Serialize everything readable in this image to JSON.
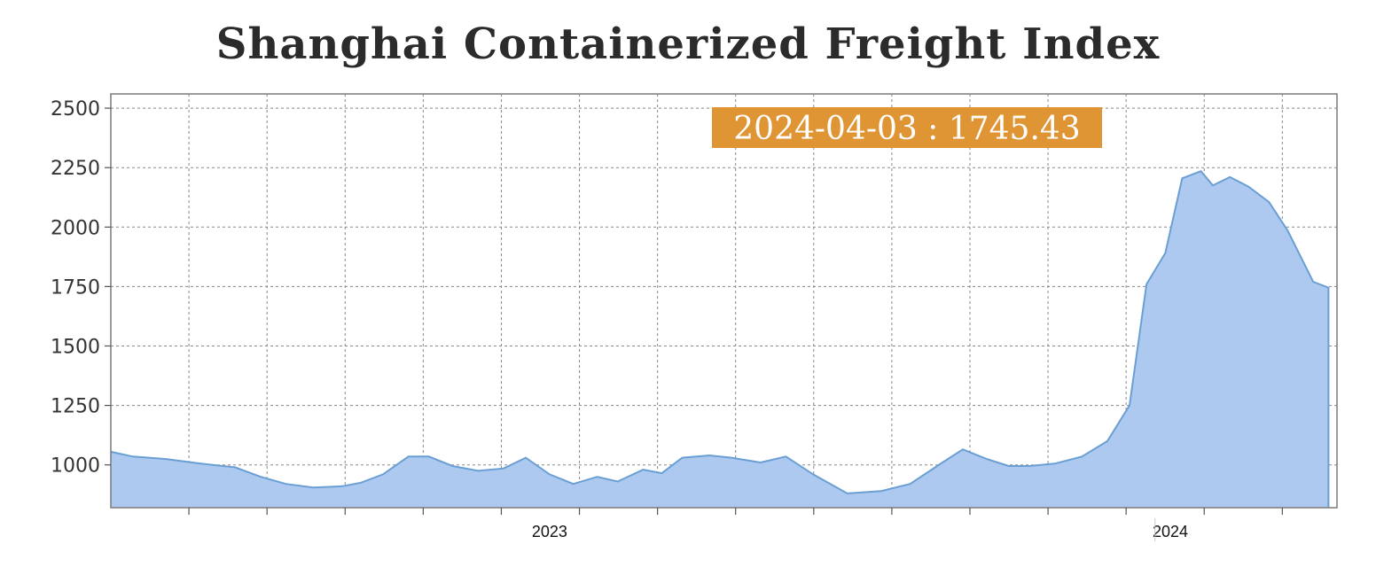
{
  "chart_data": {
    "type": "area",
    "title": "Shanghai Containerized Freight Index",
    "xlabel": "",
    "ylabel": "",
    "x_range": [
      "2022-04-18",
      "2024-04-08"
    ],
    "ylim": [
      820,
      2560
    ],
    "yticks": [
      1000,
      1250,
      1500,
      1750,
      2000,
      2250,
      2500
    ],
    "xtick_labels": [
      {
        "label": "2023",
        "date": "2023-01-01"
      },
      {
        "label": "2024",
        "date": "2024-01-01"
      }
    ],
    "grid": true,
    "tooltip": {
      "date": "2024-04-03",
      "value": "1745.43",
      "text": "2024-04-03 : 1745.43"
    },
    "colors": {
      "fill": "#aec9f0",
      "line": "#6a9fd4",
      "grid": "#888888",
      "tooltip_bg": "#e09535"
    },
    "series": [
      {
        "x": [
          "2022-04-18",
          "2022-05-01",
          "2022-05-20",
          "2022-06-10",
          "2022-06-30",
          "2022-07-15",
          "2022-07-30",
          "2022-08-15",
          "2022-09-01",
          "2022-09-12",
          "2022-09-25",
          "2022-10-10",
          "2022-10-22",
          "2022-11-05",
          "2022-11-20",
          "2022-12-05",
          "2022-12-18",
          "2023-01-01",
          "2023-01-15",
          "2023-01-29",
          "2023-02-10",
          "2023-02-25",
          "2023-03-08",
          "2023-03-20",
          "2023-04-05",
          "2023-04-18",
          "2023-05-05",
          "2023-05-20",
          "2023-06-05",
          "2023-06-25",
          "2023-07-15",
          "2023-08-01",
          "2023-08-20",
          "2023-09-01",
          "2023-09-15",
          "2023-09-28",
          "2023-10-10",
          "2023-10-25",
          "2023-11-10",
          "2023-11-25",
          "2023-12-08",
          "2023-12-18",
          "2023-12-29",
          "2024-01-08",
          "2024-01-19",
          "2024-01-26",
          "2024-02-05",
          "2024-02-16",
          "2024-02-28",
          "2024-03-10",
          "2024-03-25",
          "2024-04-03"
        ],
        "y": [
          1055,
          1035,
          1025,
          1005,
          990,
          950,
          920,
          905,
          910,
          925,
          960,
          1035,
          1035,
          995,
          975,
          985,
          1030,
          960,
          920,
          950,
          930,
          980,
          965,
          1030,
          1040,
          1030,
          1010,
          1035,
          960,
          880,
          890,
          920,
          1010,
          1065,
          1025,
          995,
          995,
          1005,
          1035,
          1100,
          1250,
          1760,
          1890,
          2205,
          2235,
          2175,
          2210,
          2170,
          2105,
          1985,
          1770,
          1745
        ]
      }
    ]
  }
}
